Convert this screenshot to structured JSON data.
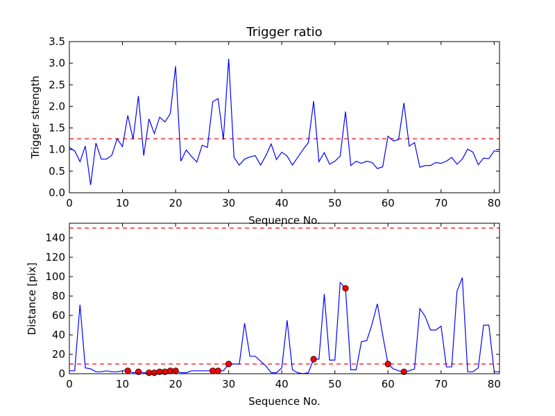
{
  "chart_data": [
    {
      "type": "line",
      "title": "Trigger ratio",
      "xlabel": "Sequence No.",
      "ylabel": "Trigger strength",
      "xlim": [
        0,
        81
      ],
      "ylim": [
        0,
        3.5
      ],
      "xticks": [
        0,
        10,
        20,
        30,
        40,
        50,
        60,
        70,
        80
      ],
      "xtick_labels": [
        "0",
        "10",
        "20",
        "30",
        "40",
        "50",
        "60",
        "70",
        "80"
      ],
      "yticks": [
        0,
        0.5,
        1.0,
        1.5,
        2.0,
        2.5,
        3.0,
        3.5
      ],
      "ytick_labels": [
        "0.0",
        "0.5",
        "1.0",
        "1.5",
        "2.0",
        "2.5",
        "3.0",
        "3.5"
      ],
      "grid": false,
      "line_color": "#0000ff",
      "threshold_color": "#ff0000",
      "thresholds": [
        1.25
      ],
      "series": [
        {
          "x": [
            0,
            1,
            2,
            3,
            4,
            5,
            6,
            7,
            8,
            9,
            10,
            11,
            12,
            13,
            14,
            15,
            16,
            17,
            18,
            19,
            20,
            21,
            22,
            23,
            24,
            25,
            26,
            27,
            28,
            29,
            30,
            31,
            32,
            33,
            34,
            35,
            36,
            37,
            38,
            39,
            40,
            41,
            42,
            43,
            44,
            45,
            46,
            47,
            48,
            49,
            50,
            51,
            52,
            53,
            54,
            55,
            56,
            57,
            58,
            59,
            60,
            61,
            62,
            63,
            64,
            65,
            66,
            67,
            68,
            69,
            70,
            71,
            72,
            73,
            74,
            75,
            76,
            77,
            78,
            79,
            80,
            81
          ],
          "values": [
            1.05,
            0.97,
            0.72,
            1.08,
            0.18,
            1.15,
            0.78,
            0.78,
            0.87,
            1.25,
            1.07,
            1.79,
            1.24,
            2.24,
            0.86,
            1.71,
            1.37,
            1.75,
            1.64,
            1.83,
            2.93,
            0.73,
            0.99,
            0.84,
            0.71,
            1.1,
            1.05,
            2.11,
            2.18,
            1.23,
            3.1,
            0.82,
            0.64,
            0.78,
            0.83,
            0.86,
            0.64,
            0.86,
            1.13,
            0.77,
            0.94,
            0.85,
            0.64,
            0.82,
            1.0,
            1.16,
            2.12,
            0.72,
            0.93,
            0.66,
            0.73,
            0.85,
            1.88,
            0.63,
            0.73,
            0.68,
            0.73,
            0.7,
            0.56,
            0.6,
            1.31,
            1.2,
            1.23,
            2.08,
            1.08,
            1.16,
            0.59,
            0.63,
            0.63,
            0.7,
            0.68,
            0.73,
            0.82,
            0.66,
            0.78,
            1.01,
            0.94,
            0.65,
            0.8,
            0.79,
            0.97,
            0.95
          ]
        }
      ]
    },
    {
      "type": "line",
      "title": "",
      "xlabel": "Sequence No.",
      "ylabel": "Distance [pix]",
      "xlim": [
        0,
        81
      ],
      "ylim": [
        0,
        155
      ],
      "xticks": [
        0,
        10,
        20,
        30,
        40,
        50,
        60,
        70,
        80
      ],
      "xtick_labels": [
        "0",
        "10",
        "20",
        "30",
        "40",
        "50",
        "60",
        "70",
        "80"
      ],
      "yticks": [
        0,
        20,
        40,
        60,
        80,
        100,
        120,
        140
      ],
      "ytick_labels": [
        "0",
        "20",
        "40",
        "60",
        "80",
        "100",
        "120",
        "140"
      ],
      "grid": false,
      "line_color": "#0000ff",
      "threshold_color": "#ff0000",
      "thresholds": [
        150,
        10
      ],
      "series": [
        {
          "x": [
            0,
            1,
            2,
            3,
            4,
            5,
            6,
            7,
            8,
            9,
            10,
            11,
            12,
            13,
            14,
            15,
            16,
            17,
            18,
            19,
            20,
            21,
            22,
            23,
            24,
            25,
            26,
            27,
            28,
            29,
            30,
            31,
            32,
            33,
            34,
            35,
            36,
            37,
            38,
            39,
            40,
            41,
            42,
            43,
            44,
            45,
            46,
            47,
            48,
            49,
            50,
            51,
            52,
            53,
            54,
            55,
            56,
            57,
            58,
            59,
            60,
            61,
            62,
            63,
            64,
            65,
            66,
            67,
            68,
            69,
            70,
            71,
            72,
            73,
            74,
            75,
            76,
            77,
            78,
            79,
            80,
            81
          ],
          "values": [
            3,
            3,
            71,
            6,
            5,
            2,
            2,
            3,
            2,
            2,
            3,
            3,
            1,
            2,
            1,
            1,
            1,
            2,
            2,
            3,
            3,
            1,
            1,
            3,
            3,
            3,
            3,
            3,
            3,
            3,
            10,
            10,
            10,
            52,
            18,
            18,
            13,
            8,
            1,
            1,
            6,
            55,
            4,
            1,
            0,
            1,
            15,
            15,
            82,
            14,
            14,
            94,
            88,
            4,
            4,
            33,
            34,
            51,
            72,
            40,
            10,
            5,
            3,
            2,
            3,
            5,
            67,
            59,
            45,
            45,
            49,
            7,
            7,
            85,
            99,
            2,
            2,
            6,
            50,
            50,
            2,
            2
          ]
        }
      ],
      "markers": {
        "color": "#ff0000",
        "x": [
          11,
          13,
          15,
          16,
          17,
          18,
          19,
          20,
          27,
          28,
          30,
          46,
          52,
          60,
          63
        ],
        "values": [
          3,
          2,
          1,
          1,
          2,
          2,
          3,
          3,
          3,
          3,
          10,
          15,
          88,
          10,
          2
        ]
      }
    }
  ]
}
